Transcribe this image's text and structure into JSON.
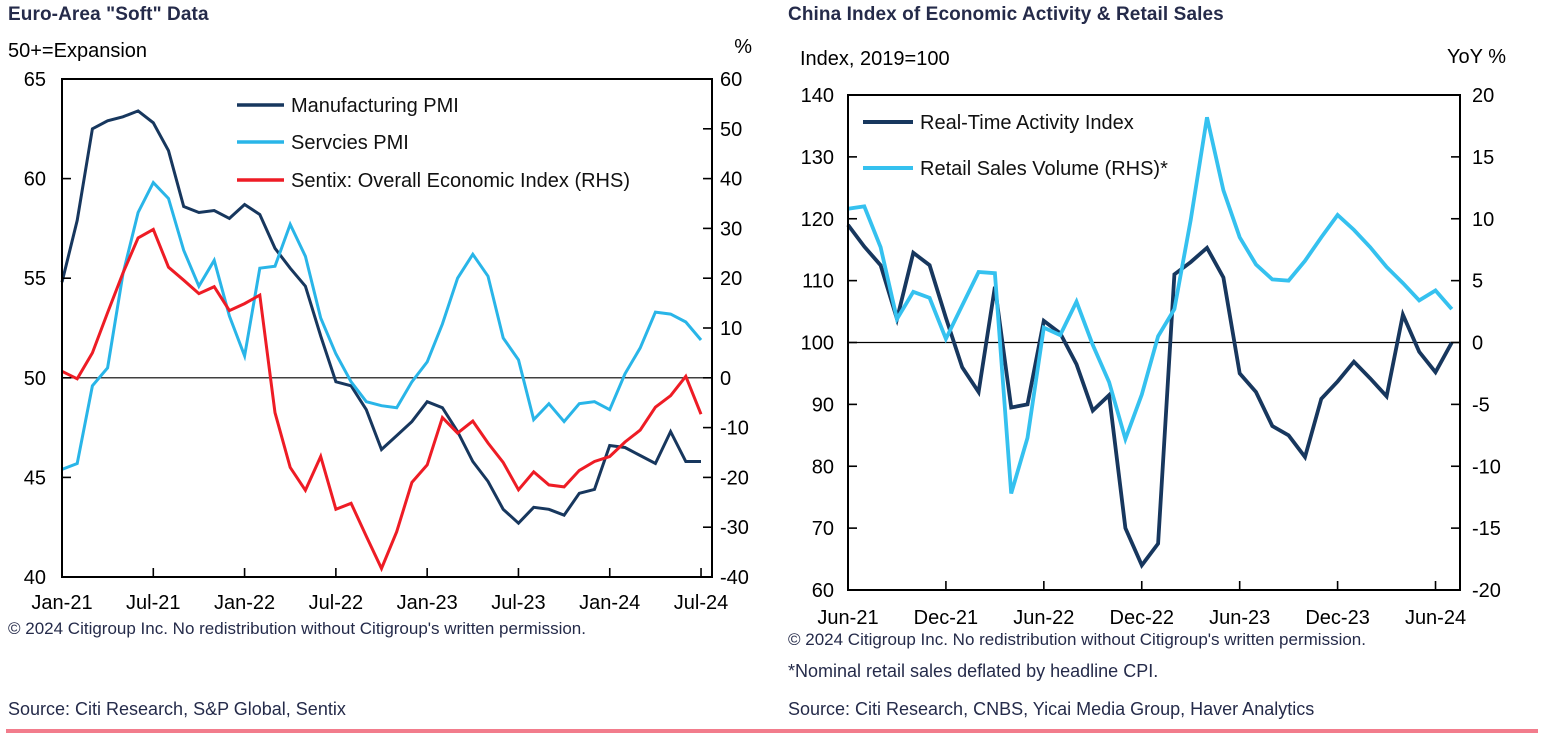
{
  "page": {
    "left_panel": {
      "title": "Euro-Area \"Soft\" Data",
      "left_axis_note": "50+=Expansion",
      "right_axis_note": "%",
      "copyright": "© 2024 Citigroup Inc. No redistribution without Citigroup's written permission.",
      "source": "Source: Citi Research, S&P Global, Sentix"
    },
    "right_panel": {
      "title": "China Index of Economic Activity & Retail Sales",
      "left_axis_note": "Index, 2019=100",
      "right_axis_note": "YoY %",
      "copyright": "© 2024 Citigroup Inc. No redistribution without Citigroup's written permission.",
      "footnote": "*Nominal retail sales deflated by headline CPI.",
      "source": "Source: Citi Research, CNBS, Yicai Media Group, Haver Analytics"
    },
    "accent_rule_color": "#e8112d"
  },
  "chart_data": [
    {
      "type": "line",
      "id": "euro-area-soft-data",
      "title": "Euro-Area \"Soft\" Data",
      "x_start": "Jan-21",
      "x_frequency": "monthly",
      "x_tick_interval": 6,
      "x_tick_labels": [
        "Jan-21",
        "Jul-21",
        "Jan-22",
        "Jul-22",
        "Jan-23",
        "Jul-23",
        "Jan-24",
        "Jul-24"
      ],
      "left_axis": {
        "note": "50+=Expansion",
        "range": [
          40,
          65
        ],
        "ticks": [
          65,
          60,
          55,
          50,
          45,
          40
        ]
      },
      "right_axis": {
        "note": "%",
        "range": [
          -40,
          60
        ],
        "ticks": [
          60,
          50,
          40,
          30,
          20,
          10,
          0,
          -10,
          -20,
          -30,
          -40
        ]
      },
      "reference_line": {
        "left_value": 50,
        "right_value": 0
      },
      "grid": false,
      "legend_position": "top-inside",
      "series": [
        {
          "name": "Manufacturing PMI",
          "axis": "left",
          "color": "#17375e",
          "values": [
            54.8,
            57.9,
            62.5,
            62.9,
            63.1,
            63.4,
            62.8,
            61.4,
            58.6,
            58.3,
            58.4,
            58.0,
            58.7,
            58.2,
            56.5,
            55.5,
            54.6,
            52.1,
            49.8,
            49.6,
            48.4,
            46.4,
            47.1,
            47.8,
            48.8,
            48.5,
            47.3,
            45.8,
            44.8,
            43.4,
            42.7,
            43.5,
            43.4,
            43.1,
            44.2,
            44.4,
            46.6,
            46.5,
            46.1,
            45.7,
            47.3,
            45.8,
            45.8
          ]
        },
        {
          "name": "Servcies PMI",
          "axis": "left",
          "color": "#29b5e8",
          "values": [
            45.4,
            45.7,
            49.6,
            50.5,
            55.2,
            58.3,
            59.8,
            59.0,
            56.4,
            54.6,
            55.9,
            53.1,
            51.1,
            55.5,
            55.6,
            57.7,
            56.1,
            53.0,
            51.2,
            49.8,
            48.8,
            48.6,
            48.5,
            49.8,
            50.8,
            52.7,
            55.0,
            56.2,
            55.1,
            52.0,
            50.9,
            47.9,
            48.7,
            47.8,
            48.7,
            48.8,
            48.4,
            50.2,
            51.5,
            53.3,
            53.2,
            52.8,
            51.9
          ]
        },
        {
          "name": "Sentix: Overall Economic Index (RHS)",
          "axis": "right",
          "color": "#ee1c25",
          "values": [
            1.3,
            -0.2,
            5.0,
            13.1,
            21.0,
            28.1,
            29.8,
            22.2,
            19.6,
            16.9,
            18.3,
            13.5,
            14.9,
            16.6,
            -7.0,
            -18.0,
            -22.6,
            -15.8,
            -26.4,
            -25.2,
            -31.8,
            -38.3,
            -30.9,
            -21.0,
            -17.5,
            -8.0,
            -11.1,
            -8.7,
            -13.1,
            -17.0,
            -22.5,
            -18.9,
            -21.5,
            -21.9,
            -18.6,
            -16.8,
            -15.8,
            -12.9,
            -10.5,
            -5.9,
            -3.6,
            0.3,
            -7.3
          ]
        }
      ]
    },
    {
      "type": "line",
      "id": "china-activity-retail-sales",
      "title": "China Index of Economic Activity & Retail Sales",
      "x_start": "Jun-21",
      "x_frequency": "monthly",
      "x_tick_interval": 6,
      "x_tick_labels": [
        "Jun-21",
        "Dec-21",
        "Jun-22",
        "Dec-22",
        "Jun-23",
        "Dec-23",
        "Jun-24"
      ],
      "left_axis": {
        "note": "Index, 2019=100",
        "range": [
          60,
          140
        ],
        "ticks": [
          140,
          130,
          120,
          110,
          100,
          90,
          80,
          70,
          60
        ]
      },
      "right_axis": {
        "note": "YoY %",
        "range": [
          -20,
          20
        ],
        "ticks": [
          20,
          15,
          10,
          5,
          0,
          -5,
          -10,
          -15,
          -20
        ]
      },
      "reference_line": {
        "left_value": 100,
        "right_value": 0
      },
      "grid": false,
      "legend_position": "top-inside",
      "series": [
        {
          "name": "Real-Time Activity Index",
          "axis": "left",
          "color": "#17375e",
          "values": [
            119,
            115.5,
            112.5,
            103.8,
            114.5,
            112.5,
            104,
            96,
            92,
            109,
            89.5,
            90,
            103.5,
            101.5,
            96.5,
            89,
            91.5,
            70,
            64,
            67.5,
            111,
            113,
            115.3,
            110.5,
            95,
            92,
            86.5,
            85,
            81.5,
            90.9,
            93.7,
            96.9,
            94.2,
            91.3,
            104.5,
            98.5,
            95.2,
            100.0
          ]
        },
        {
          "name": "Retail Sales Volume (RHS)*",
          "axis": "right",
          "color": "#35c1ef",
          "values": [
            10.8,
            11.0,
            7.7,
            1.9,
            4.1,
            3.6,
            0.3,
            3.0,
            5.7,
            5.6,
            -12.2,
            -7.7,
            1.2,
            0.6,
            3.3,
            -0.2,
            -3.2,
            -7.8,
            -4.2,
            0.5,
            2.7,
            9.9,
            18.2,
            12.3,
            8.5,
            6.3,
            5.1,
            5.0,
            6.6,
            8.5,
            10.3,
            9.1,
            7.7,
            6.1,
            4.8,
            3.4,
            4.2,
            2.7
          ]
        }
      ]
    }
  ]
}
